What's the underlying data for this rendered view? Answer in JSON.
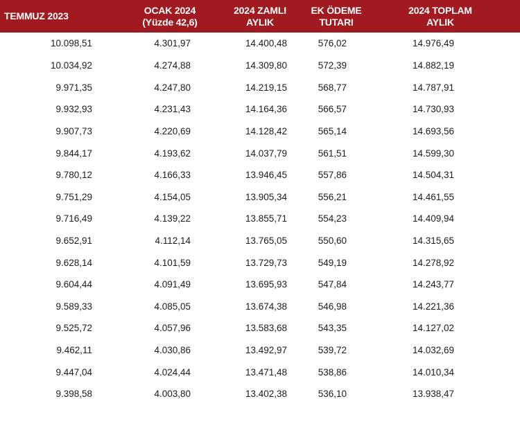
{
  "table": {
    "headers": {
      "col0": [
        "TEMMUZ 2023"
      ],
      "col1": [
        "OCAK 2024",
        "(Yüzde 42,6)"
      ],
      "col2": [
        "2024 ZAMLI",
        "AYLIK"
      ],
      "col3": [
        "EK ÖDEME",
        "TUTARI"
      ],
      "col4": [
        "2024 TOPLAM",
        "AYLIK"
      ]
    },
    "header_color": "#a01a1f",
    "rows": [
      [
        "10.098,51",
        "4.301,97",
        "14.400,48",
        "576,02",
        "14.976,49"
      ],
      [
        "10.034,92",
        "4.274,88",
        "14.309,80",
        "572,39",
        "14.882,19"
      ],
      [
        "9.971,35",
        "4.247,80",
        "14.219,15",
        "568,77",
        "14.787,91"
      ],
      [
        "9.932,93",
        "4.231,43",
        "14.164,36",
        "566,57",
        "14.730,93"
      ],
      [
        "9.907,73",
        "4.220,69",
        "14.128,42",
        "565,14",
        "14.693,56"
      ],
      [
        "9.844,17",
        "4.193,62",
        "14.037,79",
        "561,51",
        "14.599,30"
      ],
      [
        "9.780,12",
        "4.166,33",
        "13.946,45",
        "557,86",
        "14.504,31"
      ],
      [
        "9.751,29",
        "4.154,05",
        "13.905,34",
        "556,21",
        "14.461,55"
      ],
      [
        "9.716,49",
        "4.139,22",
        "13.855,71",
        "554,23",
        "14.409,94"
      ],
      [
        "9.652,91",
        "4.112,14",
        "13.765,05",
        "550,60",
        "14.315,65"
      ],
      [
        "9.628,14",
        "4.101,59",
        "13.729,73",
        "549,19",
        "14.278,92"
      ],
      [
        "9.604,44",
        "4.091,49",
        "13.695,93",
        "547,84",
        "14.243,77"
      ],
      [
        "9.589,33",
        "4.085,05",
        "13.674,38",
        "546,98",
        "14.221,36"
      ],
      [
        "9.525,72",
        "4.057,96",
        "13.583,68",
        "543,35",
        "14.127,02"
      ],
      [
        "9.462,11",
        "4.030,86",
        "13.492,97",
        "539,72",
        "14.032,69"
      ],
      [
        "9.447,04",
        "4.024,44",
        "13.471,48",
        "538,86",
        "14.010,34"
      ],
      [
        "9.398,58",
        "4.003,80",
        "13.402,38",
        "536,10",
        "13.938,47"
      ]
    ]
  }
}
